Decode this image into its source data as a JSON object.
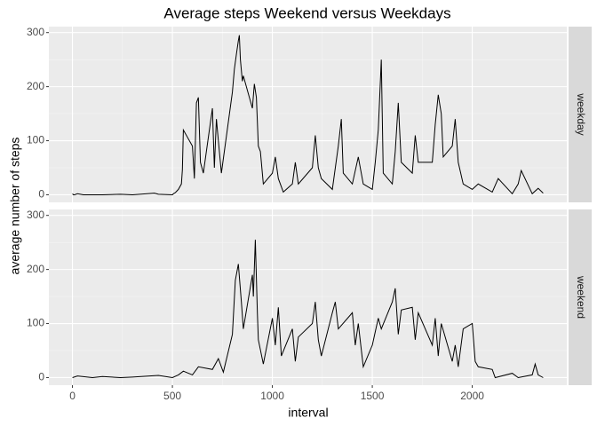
{
  "chart_data": {
    "type": "line",
    "title": "Average steps Weekend versus Weekdays",
    "xlabel": "interval",
    "ylabel": "average number of steps",
    "xlim": [
      -118,
      2473
    ],
    "xticks": [
      0,
      500,
      1000,
      1500,
      2000
    ],
    "ylim": [
      -14,
      311
    ],
    "yticks": [
      0,
      100,
      200,
      300
    ],
    "grid": true,
    "panels": [
      {
        "label": "weekday",
        "color": "#000000",
        "x": [
          0,
          5,
          10,
          25,
          55,
          100,
          150,
          240,
          300,
          410,
          430,
          500,
          505,
          515,
          530,
          545,
          550,
          555,
          600,
          610,
          620,
          630,
          640,
          655,
          700,
          710,
          720,
          730,
          745,
          800,
          810,
          820,
          830,
          835,
          840,
          850,
          855,
          900,
          910,
          920,
          930,
          940,
          955,
          1000,
          1015,
          1030,
          1055,
          1100,
          1115,
          1130,
          1200,
          1215,
          1230,
          1245,
          1300,
          1330,
          1345,
          1355,
          1400,
          1430,
          1455,
          1500,
          1515,
          1530,
          1545,
          1555,
          1600,
          1615,
          1630,
          1645,
          1700,
          1715,
          1730,
          1800,
          1815,
          1830,
          1845,
          1855,
          1900,
          1915,
          1930,
          1955,
          2000,
          2030,
          2100,
          2130,
          2200,
          2230,
          2245,
          2300,
          2330,
          2355
        ],
        "values": [
          2,
          0,
          0,
          2,
          0,
          0,
          0,
          1,
          0,
          3,
          1,
          0,
          2,
          4,
          10,
          20,
          46,
          120,
          90,
          30,
          170,
          180,
          60,
          40,
          160,
          50,
          140,
          100,
          40,
          190,
          232,
          260,
          285,
          295,
          250,
          210,
          220,
          160,
          205,
          180,
          90,
          80,
          20,
          40,
          70,
          30,
          5,
          20,
          60,
          20,
          50,
          110,
          50,
          30,
          10,
          90,
          140,
          40,
          20,
          70,
          20,
          10,
          60,
          120,
          250,
          40,
          20,
          80,
          170,
          60,
          40,
          110,
          60,
          60,
          130,
          185,
          150,
          70,
          90,
          140,
          60,
          20,
          10,
          20,
          5,
          30,
          2,
          20,
          45,
          2,
          12,
          3
        ]
      },
      {
        "label": "weekend",
        "color": "#000000",
        "x": [
          0,
          25,
          100,
          150,
          240,
          300,
          430,
          500,
          530,
          555,
          600,
          630,
          700,
          730,
          755,
          800,
          815,
          830,
          845,
          855,
          900,
          905,
          915,
          925,
          930,
          955,
          1000,
          1015,
          1030,
          1045,
          1100,
          1115,
          1130,
          1200,
          1215,
          1230,
          1245,
          1300,
          1315,
          1330,
          1400,
          1415,
          1430,
          1455,
          1500,
          1530,
          1545,
          1600,
          1615,
          1630,
          1645,
          1700,
          1715,
          1730,
          1800,
          1815,
          1830,
          1845,
          1900,
          1915,
          1930,
          1955,
          2000,
          2015,
          2030,
          2100,
          2115,
          2200,
          2230,
          2300,
          2315,
          2330,
          2355
        ],
        "values": [
          0,
          3,
          0,
          2,
          0,
          1,
          4,
          0,
          5,
          12,
          5,
          20,
          15,
          35,
          10,
          80,
          180,
          210,
          140,
          90,
          190,
          150,
          255,
          120,
          70,
          25,
          110,
          60,
          130,
          40,
          90,
          30,
          75,
          100,
          140,
          70,
          40,
          120,
          140,
          90,
          120,
          60,
          100,
          20,
          60,
          110,
          90,
          140,
          165,
          80,
          125,
          130,
          70,
          120,
          60,
          110,
          40,
          100,
          30,
          60,
          20,
          90,
          100,
          30,
          20,
          15,
          0,
          8,
          0,
          5,
          25,
          5,
          0
        ]
      }
    ]
  }
}
